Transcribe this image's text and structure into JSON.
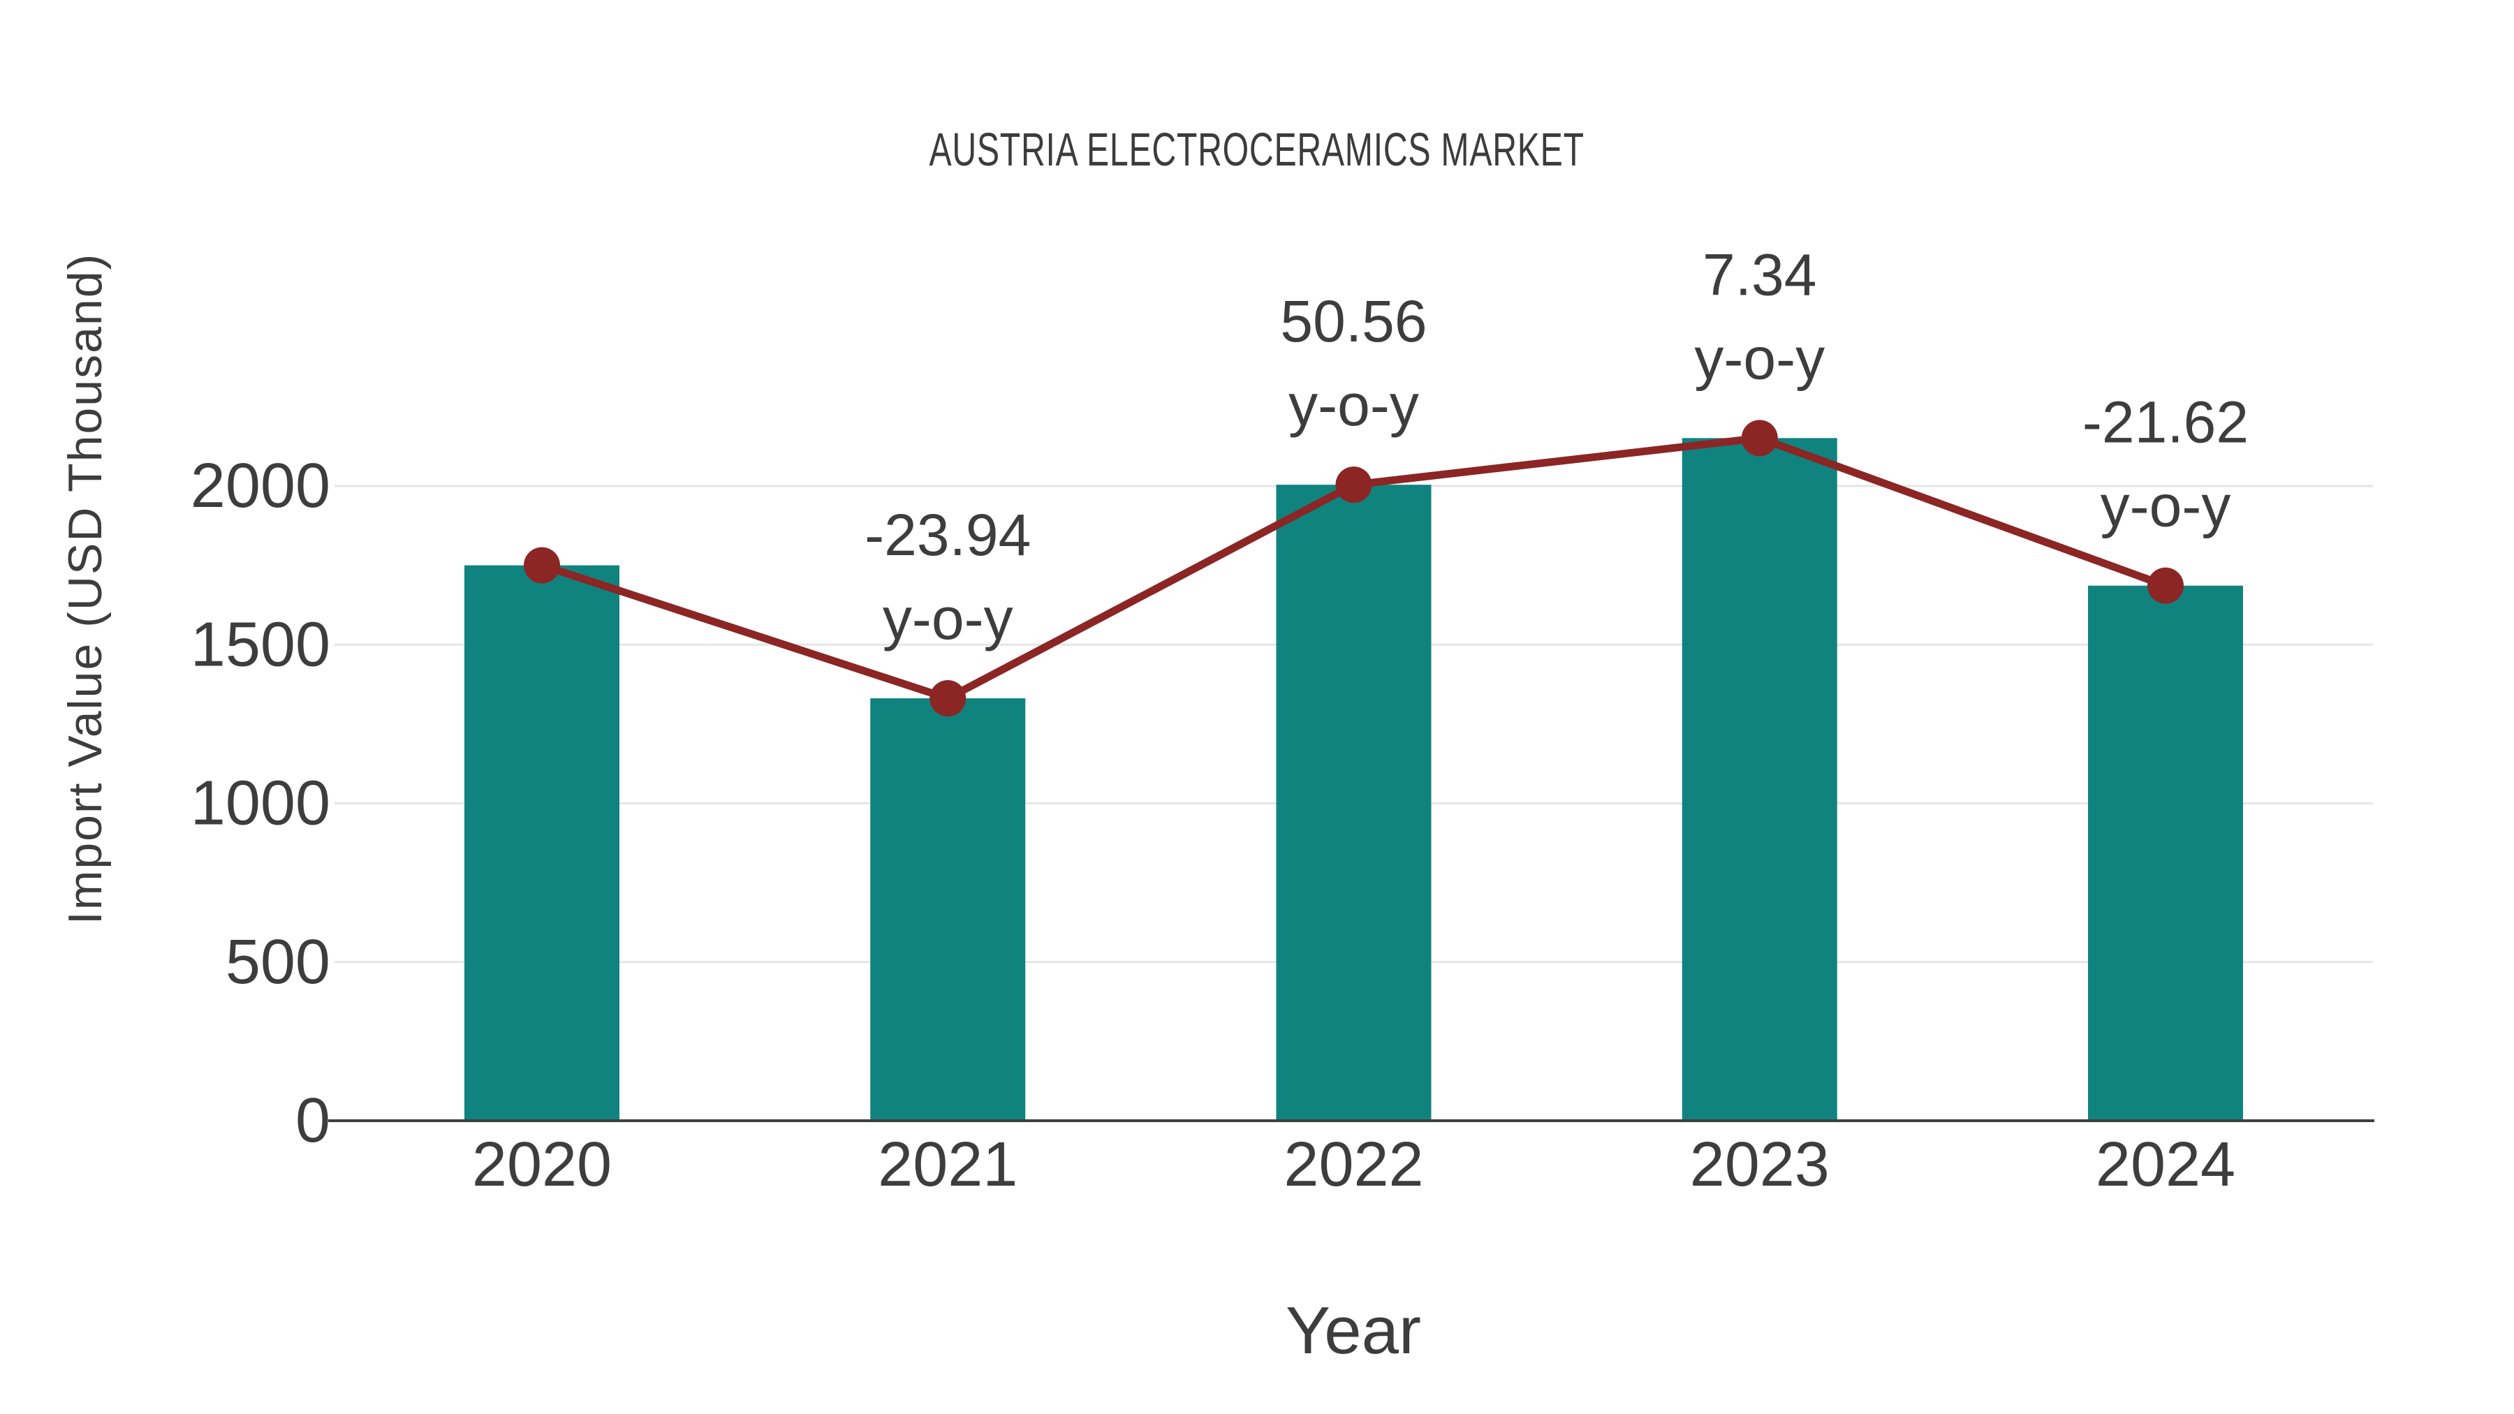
{
  "title": "AUSTRIA ELECTROCERAMICS MARKET",
  "x_axis_title": "Year",
  "y_axis_title": "Import Value (USD Thousand)",
  "colors": {
    "background": "#ffffff",
    "bar": "#10837F",
    "trend_line": "#8B2625",
    "marker": "#8B2625",
    "axis_line": "#3f3f3f",
    "gridline": "#e6e6e6",
    "text": "#3d3d3d"
  },
  "chart_data": {
    "type": "bar",
    "title": "AUSTRIA ELECTROCERAMICS MARKET",
    "xlabel": "Year",
    "ylabel": "Import Value (USD Thousand)",
    "categories": [
      "2020",
      "2021",
      "2022",
      "2023",
      "2024"
    ],
    "series": [
      {
        "name": "Import Value",
        "type": "bar",
        "values": [
          1750,
          1331,
          2004,
          2151,
          1686
        ]
      },
      {
        "name": "Import Value trend",
        "type": "line",
        "values": [
          1750,
          1331,
          2004,
          2151,
          1686
        ]
      }
    ],
    "annotations": [
      {
        "category": "2021",
        "line1": "-23.94",
        "line2": "y-o-y"
      },
      {
        "category": "2022",
        "line1": "50.56",
        "line2": "y-o-y"
      },
      {
        "category": "2023",
        "line1": "7.34",
        "line2": "y-o-y"
      },
      {
        "category": "2024",
        "line1": "-21.62",
        "line2": "y-o-y"
      }
    ],
    "y_ticks": [
      "0",
      "500",
      "1000",
      "1500",
      "2000"
    ],
    "y_tick_values": [
      0,
      500,
      1000,
      1500,
      2000
    ],
    "ylim": [
      0,
      2400
    ],
    "grid": true,
    "legend_position": "none"
  }
}
